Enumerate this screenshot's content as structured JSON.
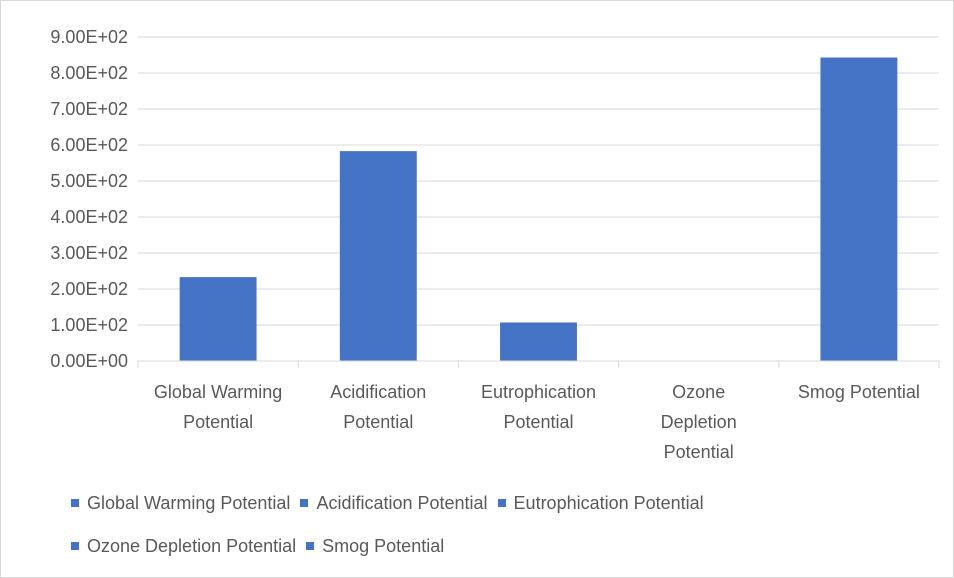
{
  "colors": {
    "bar": "#4472c4",
    "grid": "#d9d9d9",
    "text": "#595959"
  },
  "chart_data": {
    "type": "bar",
    "title": "",
    "xlabel": "",
    "ylabel": "",
    "categories": [
      "Global Warming Potential",
      "Acidification Potential",
      "Eutrophication Potential",
      "Ozone Depletion Potential",
      "Smog Potential"
    ],
    "category_label_lines": [
      [
        "Global Warming",
        "Potential"
      ],
      [
        "Acidification",
        "Potential"
      ],
      [
        "Eutrophication",
        "Potential"
      ],
      [
        "Ozone",
        "Depletion",
        "Potential"
      ],
      [
        "Smog Potential"
      ]
    ],
    "values": [
      233,
      583,
      107,
      0,
      843
    ],
    "ylim": [
      0,
      900
    ],
    "yticks": [
      0,
      100,
      200,
      300,
      400,
      500,
      600,
      700,
      800,
      900
    ],
    "ytick_labels": [
      "0.00E+00",
      "1.00E+02",
      "2.00E+02",
      "3.00E+02",
      "4.00E+02",
      "5.00E+02",
      "6.00E+02",
      "7.00E+02",
      "8.00E+02",
      "9.00E+02"
    ],
    "grid": true,
    "legend_placement": "bottom",
    "legend_rows": [
      [
        "Global Warming Potential",
        "Acidification Potential",
        "Eutrophication Potential"
      ],
      [
        "Ozone Depletion Potential",
        "Smog Potential"
      ]
    ]
  }
}
